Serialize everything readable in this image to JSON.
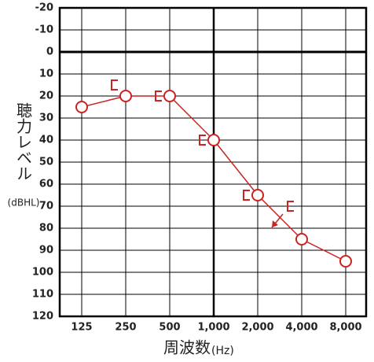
{
  "chart_data": {
    "type": "line",
    "x_label": "周波数",
    "x_label_unit": "(Hz)",
    "y_label": "聴力レベル",
    "y_label_unit": "(dBHL)",
    "categories": [
      "125",
      "250",
      "500",
      "1,000",
      "2,000",
      "4,000",
      "8,000"
    ],
    "ylim": [
      -20,
      120
    ],
    "y_reversed": true,
    "yticks": [
      -20,
      -10,
      0,
      10,
      20,
      30,
      40,
      50,
      60,
      70,
      80,
      90,
      100,
      110,
      120
    ],
    "emphasis_y": 0,
    "grid": true,
    "series": [
      {
        "color": "#cc2222",
        "marker": "circle",
        "connected": true,
        "values": [
          25,
          20,
          20,
          40,
          65,
          85,
          95
        ]
      },
      {
        "color": "#cc2222",
        "marker": "bracket",
        "connected": false,
        "values": [
          null,
          15,
          20,
          40,
          65,
          70,
          null
        ],
        "scale_out": [
          false,
          false,
          false,
          false,
          false,
          true,
          false
        ]
      }
    ]
  }
}
